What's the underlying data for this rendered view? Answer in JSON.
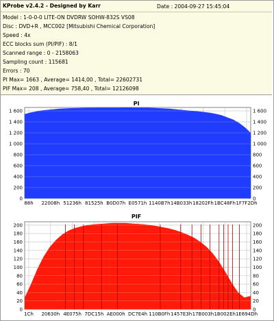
{
  "header": {
    "title": "KProbe v2.4.2 - Designed by Karr",
    "date": "Date : 2004-09-27 15:45:04"
  },
  "info_lines": [
    "Model : 1-0-0-0 LITE-ON DVDRW SOHW-832S  VS08",
    "Disc : DVD+R , MCC002 [Mitsubishi Chemical Corporation]",
    "Speed : 4x",
    "ECC blocks sum (PI/PIF) : 8/1",
    "Scanned range : 0 - 2158063",
    "Sampling count : 115681",
    "Errors : 70",
    "PI Max= 1663 , Average= 1414,00 , Total= 22602731",
    "PIF Max= 208 , Average= 758,40 , Total= 12126098"
  ],
  "colors": {
    "pi_fill": "#1f3cff",
    "pif_fill": "#ff1a0a",
    "grid": "#c0c0c0",
    "info_bg": "#fbfbe3"
  },
  "chart_data": [
    {
      "type": "area",
      "title": "PI",
      "ylim": [
        0,
        1663
      ],
      "y_ticks": [
        0,
        200,
        400,
        600,
        800,
        1000,
        1200,
        1400,
        1600
      ],
      "x_ticks": [
        "88h",
        "22008h",
        "51236h",
        "81525h",
        "B0D07h",
        "E0571h",
        "1140B7h",
        "14B033h",
        "18202Fh",
        "1BC48Fh",
        "1F7F2Dh"
      ],
      "grid": true,
      "series": [
        {
          "values": [
            1540,
            1570,
            1590,
            1610,
            1620,
            1630,
            1640,
            1645,
            1650,
            1652,
            1655,
            1657,
            1658,
            1659,
            1660,
            1660,
            1661,
            1662,
            1663,
            1662,
            1660,
            1658,
            1655,
            1650,
            1645,
            1640,
            1630,
            1620,
            1610,
            1600,
            1590,
            1580,
            1565,
            1545,
            1520,
            1480,
            1440,
            1380,
            1300,
            1200
          ]
        }
      ]
    },
    {
      "type": "area",
      "title": "PIF",
      "ylim": [
        0,
        208
      ],
      "y_ticks": [
        0,
        20,
        40,
        60,
        80,
        100,
        120,
        140,
        160,
        180,
        200
      ],
      "x_ticks": [
        "1Ch",
        "20630h",
        "4E075h",
        "7DC15h",
        "AE000h",
        "DC7E4h",
        "110B0Fh",
        "1457E3h",
        "17B003h",
        "1B002Eh",
        "1E694Dh"
      ],
      "grid": true,
      "series": [
        {
          "values": [
            28,
            60,
            95,
            125,
            148,
            165,
            178,
            187,
            193,
            197,
            200,
            202,
            203,
            204,
            205,
            205,
            205,
            204,
            203,
            202,
            200,
            198,
            195,
            192,
            188,
            183,
            177,
            170,
            160,
            148,
            132,
            112,
            88,
            62,
            40,
            28,
            32
          ]
        }
      ]
    }
  ]
}
